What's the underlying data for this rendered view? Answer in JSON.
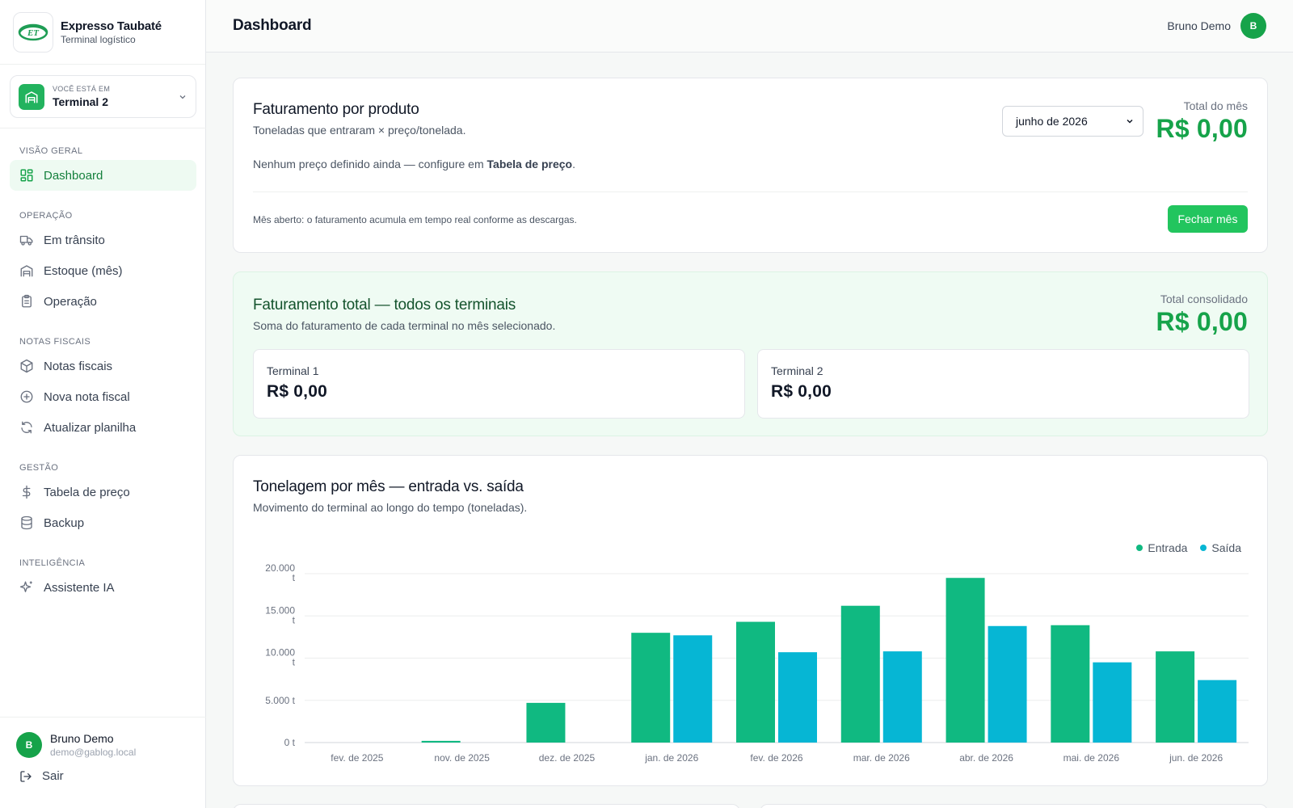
{
  "brand": {
    "name": "Expresso Taubaté",
    "subtitle": "Terminal logístico",
    "logo_text": "ET"
  },
  "terminal_selector": {
    "caption": "VOCÊ ESTÁ EM",
    "value": "Terminal 2"
  },
  "nav": {
    "sections": [
      {
        "title": "VISÃO GERAL",
        "items": [
          {
            "label": "Dashboard",
            "icon": "grid-icon",
            "active": true
          }
        ]
      },
      {
        "title": "OPERAÇÃO",
        "items": [
          {
            "label": "Em trânsito",
            "icon": "truck-icon"
          },
          {
            "label": "Estoque (mês)",
            "icon": "warehouse-icon"
          },
          {
            "label": "Operação",
            "icon": "clipboard-icon"
          }
        ]
      },
      {
        "title": "NOTAS FISCAIS",
        "items": [
          {
            "label": "Notas fiscais",
            "icon": "box-icon"
          },
          {
            "label": "Nova nota fiscal",
            "icon": "plus-circle-icon"
          },
          {
            "label": "Atualizar planilha",
            "icon": "refresh-icon"
          }
        ]
      },
      {
        "title": "GESTÃO",
        "items": [
          {
            "label": "Tabela de preço",
            "icon": "dollar-icon"
          },
          {
            "label": "Backup",
            "icon": "database-icon"
          }
        ]
      },
      {
        "title": "INTELIGÊNCIA",
        "items": [
          {
            "label": "Assistente IA",
            "icon": "sparkles-icon"
          }
        ]
      }
    ]
  },
  "user": {
    "name": "Bruno Demo",
    "email": "demo@gablog.local",
    "initial": "B"
  },
  "logout_label": "Sair",
  "header": {
    "title": "Dashboard",
    "user_name": "Bruno Demo",
    "user_initial": "B"
  },
  "billing_by_product": {
    "title": "Faturamento por produto",
    "subtitle": "Toneladas que entraram × preço/tonelada.",
    "month": "junho de 2026",
    "total_caption": "Total do mês",
    "total_value": "R$ 0,00",
    "empty_prefix": "Nenhum preço definido ainda — configure em ",
    "empty_link": "Tabela de preço",
    "empty_suffix": ".",
    "open_note": "Mês aberto: o faturamento acumula em tempo real conforme as descargas.",
    "close_button": "Fechar mês"
  },
  "billing_total": {
    "title": "Faturamento total — todos os terminais",
    "subtitle": "Soma do faturamento de cada terminal no mês selecionado.",
    "total_caption": "Total consolidado",
    "total_value": "R$ 0,00",
    "terminals": [
      {
        "label": "Terminal 1",
        "value": "R$ 0,00"
      },
      {
        "label": "Terminal 2",
        "value": "R$ 0,00"
      }
    ]
  },
  "tonnage": {
    "title": "Tonelagem por mês — entrada vs. saída",
    "subtitle": "Movimento do terminal ao longo do tempo (toneladas)."
  },
  "colors": {
    "accent": "#16a34a",
    "entrada": "#10b981",
    "saida": "#06b6d4"
  },
  "chart_data": {
    "type": "bar",
    "categories": [
      "fev. de 2025",
      "nov. de 2025",
      "dez. de 2025",
      "jan. de 2026",
      "fev. de 2026",
      "mar. de 2026",
      "abr. de 2026",
      "mai. de 2026",
      "jun. de 2026"
    ],
    "series": [
      {
        "name": "Entrada",
        "values": [
          0,
          200,
          4700,
          13000,
          14300,
          16200,
          19500,
          13900,
          10800
        ]
      },
      {
        "name": "Saída",
        "values": [
          0,
          0,
          0,
          12700,
          10700,
          10800,
          13800,
          9500,
          7400
        ]
      }
    ],
    "yticks": [
      "0 t",
      "5.000 t",
      "10.000 t",
      "15.000 t",
      "20.000 t"
    ],
    "ylim": [
      0,
      20000
    ],
    "legend_position": "top-right",
    "grid": true
  }
}
